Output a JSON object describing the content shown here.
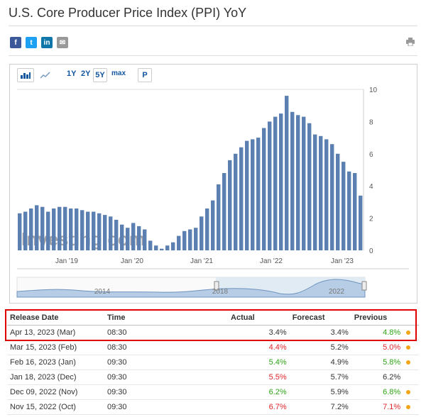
{
  "page": {
    "title": "U.S. Core Producer Price Index (PPI) YoY"
  },
  "share": [
    {
      "name": "facebook",
      "label": "f",
      "color": "#3b5998"
    },
    {
      "name": "twitter",
      "label": "t",
      "color": "#1da1f2"
    },
    {
      "name": "linkedin",
      "label": "in",
      "color": "#0e76a8"
    },
    {
      "name": "email",
      "label": "✉",
      "color": "#999999"
    }
  ],
  "toolbar": {
    "ranges": [
      "1Y",
      "2Y",
      "5Y",
      "max"
    ],
    "selected_range": "5Y",
    "p_label": "P"
  },
  "chart_data": {
    "type": "bar",
    "watermark": "Investing.com",
    "x_ticks": [
      "Jan '19",
      "Jan '20",
      "Jan '21",
      "Jan '22",
      "Jan '23"
    ],
    "y_ticks": [
      "10",
      "8",
      "6",
      "4",
      "2",
      "0"
    ],
    "ylim": [
      0,
      10
    ],
    "values": [
      2.3,
      2.4,
      2.6,
      2.8,
      2.7,
      2.4,
      2.6,
      2.7,
      2.7,
      2.6,
      2.6,
      2.5,
      2.4,
      2.4,
      2.3,
      2.2,
      2.1,
      1.9,
      1.6,
      1.4,
      1.7,
      1.5,
      1.3,
      0.6,
      0.3,
      0.1,
      0.3,
      0.5,
      0.9,
      1.2,
      1.3,
      1.4,
      2.1,
      2.6,
      3.1,
      4.1,
      4.8,
      5.6,
      6.0,
      6.4,
      6.8,
      6.9,
      7.0,
      7.6,
      8.0,
      8.3,
      8.5,
      9.6,
      8.6,
      8.4,
      8.3,
      7.9,
      7.2,
      7.1,
      6.9,
      6.6,
      6.0,
      5.5,
      4.9,
      4.8,
      3.4
    ],
    "navigator_ticks": [
      "2014",
      "2018",
      "2022"
    ]
  },
  "table": {
    "headers": [
      "Release Date",
      "Time",
      "Actual",
      "Forecast",
      "Previous"
    ],
    "rows": [
      {
        "date": "Apr 13, 2023 (Mar)",
        "time": "08:30",
        "actual": "3.4%",
        "actual_color": "black",
        "forecast": "3.4%",
        "previous": "4.8%",
        "previous_color": "green",
        "dot": true
      },
      {
        "date": "Mar 15, 2023 (Feb)",
        "time": "08:30",
        "actual": "4.4%",
        "actual_color": "red",
        "forecast": "5.2%",
        "previous": "5.0%",
        "previous_color": "red",
        "dot": true
      },
      {
        "date": "Feb 16, 2023 (Jan)",
        "time": "09:30",
        "actual": "5.4%",
        "actual_color": "green",
        "forecast": "4.9%",
        "previous": "5.8%",
        "previous_color": "green",
        "dot": true
      },
      {
        "date": "Jan 18, 2023 (Dec)",
        "time": "09:30",
        "actual": "5.5%",
        "actual_color": "red",
        "forecast": "5.7%",
        "previous": "6.2%",
        "previous_color": "black",
        "dot": false
      },
      {
        "date": "Dec 09, 2022 (Nov)",
        "time": "09:30",
        "actual": "6.2%",
        "actual_color": "green",
        "forecast": "5.9%",
        "previous": "6.8%",
        "previous_color": "green",
        "dot": true
      },
      {
        "date": "Nov 15, 2022 (Oct)",
        "time": "09:30",
        "actual": "6.7%",
        "actual_color": "red",
        "forecast": "7.2%",
        "previous": "7.1%",
        "previous_color": "red",
        "dot": true
      }
    ]
  }
}
